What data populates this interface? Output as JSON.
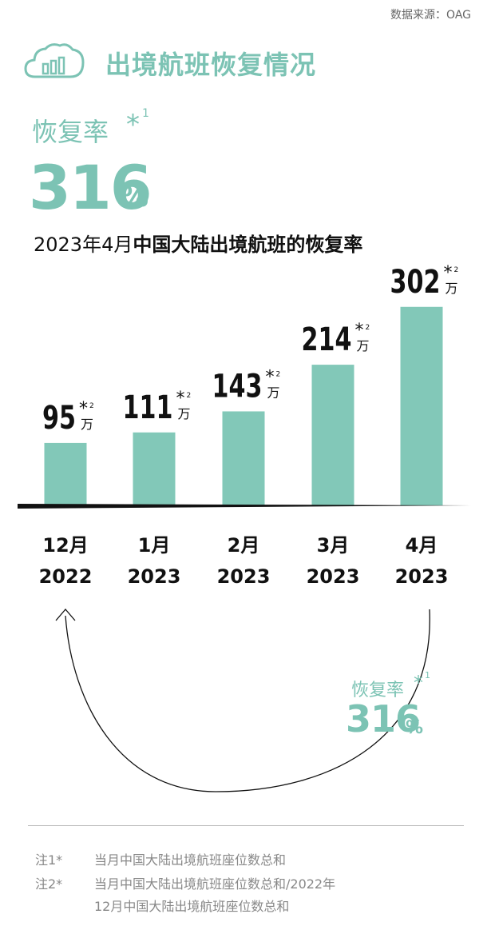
{
  "header": {
    "source": "数据来源：OAG",
    "title": "出境航班恢复情况",
    "icon": "cloud-bar-chart-icon"
  },
  "highlight": {
    "label": "恢复率",
    "star": "*",
    "sup": "1",
    "number": "316",
    "percent": "%"
  },
  "subtitle": {
    "prefix": "2023年4月",
    "bold": "中国大陆出境航班的恢复率"
  },
  "chart_data": {
    "type": "bar",
    "categories": [
      "12月 2022",
      "1月 2023",
      "2月 2023",
      "3月 2023",
      "4月 2023"
    ],
    "category_lines": [
      [
        "12月",
        "2022"
      ],
      [
        "1月",
        "2023"
      ],
      [
        "2月",
        "2023"
      ],
      [
        "3月",
        "2023"
      ],
      [
        "4月",
        "2023"
      ]
    ],
    "values": [
      95,
      111,
      143,
      214,
      302
    ],
    "labels": [
      "95",
      "111",
      "143",
      "214",
      "302"
    ],
    "unit": "万",
    "label_star": "*",
    "label_sup": "2",
    "bar_color": "#82c8b8",
    "baseline_color": "#111111",
    "title": "",
    "xlabel": "",
    "ylabel": ""
  },
  "arc_callout": {
    "label": "恢复率",
    "star": "*",
    "sup": "1",
    "number": "316",
    "percent": "%"
  },
  "notes": {
    "n1_label": "注1*",
    "n1_text": "当月中国大陆出境航班座位数总和",
    "n2_label": "注2*",
    "n2_text_line1": "当月中国大陆出境航班座位数总和/2022年",
    "n2_text_line2": "12月中国大陆出境航班座位数总和"
  },
  "colors": {
    "accent": "#7cc3b4",
    "text": "#111111",
    "muted": "#888888"
  }
}
